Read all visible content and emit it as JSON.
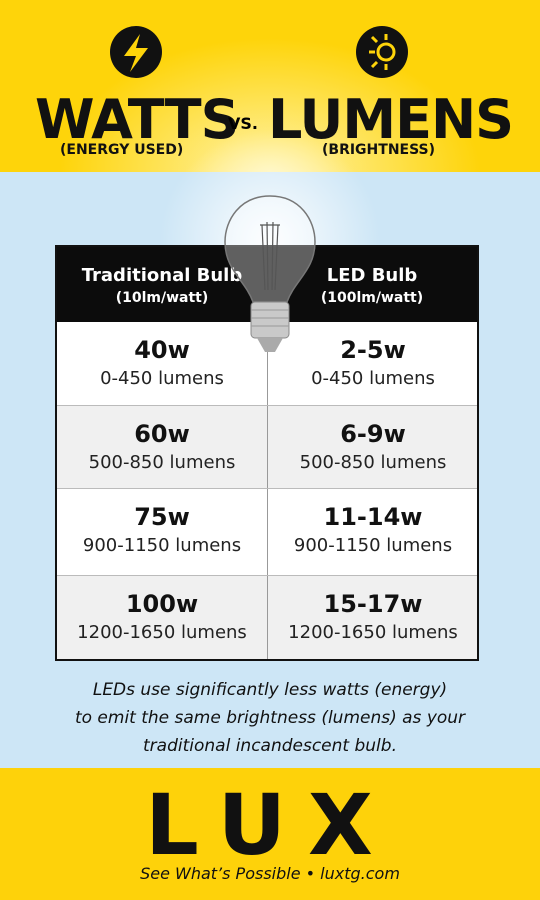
{
  "header": {
    "left_title": "WATTS",
    "vs": "VS.",
    "right_title": "LUMENS",
    "left_subtitle": "(ENERGY USED)",
    "right_subtitle": "(BRIGHTNESS)"
  },
  "table": {
    "columns": [
      {
        "title": "Traditional Bulb",
        "subtitle": "(10lm/watt)"
      },
      {
        "title": "LED Bulb",
        "subtitle": "(100lm/watt)"
      }
    ],
    "rows": [
      [
        {
          "watts": "40w",
          "lumens": "0-450 lumens"
        },
        {
          "watts": "2-5w",
          "lumens": "0-450 lumens"
        }
      ],
      [
        {
          "watts": "60w",
          "lumens": "500-850 lumens"
        },
        {
          "watts": "6-9w",
          "lumens": "500-850 lumens"
        }
      ],
      [
        {
          "watts": "75w",
          "lumens": "900-1150 lumens"
        },
        {
          "watts": "11-14w",
          "lumens": "900-1150 lumens"
        }
      ],
      [
        {
          "watts": "100w",
          "lumens": "1200-1650 lumens"
        },
        {
          "watts": "15-17w",
          "lumens": "1200-1650 lumens"
        }
      ]
    ]
  },
  "note": [
    "LEDs use significantly less watts (energy)",
    "to emit the same brightness (lumens) as your",
    "traditional incandescent bulb."
  ],
  "footer": {
    "logo": "LUX",
    "tagline": "See What’s Possible • luxtg.com"
  }
}
